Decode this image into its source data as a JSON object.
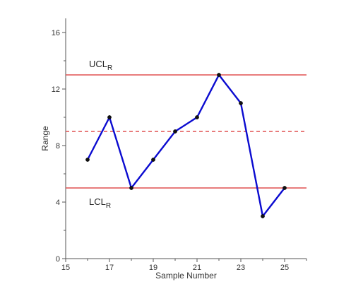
{
  "chart_data": {
    "type": "line",
    "xlabel": "Sample Number",
    "ylabel": "Range",
    "xlim": [
      15,
      26
    ],
    "ylim": [
      0,
      17
    ],
    "x_ticks": [
      15,
      17,
      19,
      21,
      23,
      25
    ],
    "y_ticks": [
      0,
      4,
      8,
      12,
      16
    ],
    "series": [
      {
        "x": [
          16,
          17,
          18,
          19,
          20,
          21,
          22,
          23,
          24,
          25
        ],
        "values": [
          7,
          10,
          5,
          7,
          9,
          10,
          13,
          11,
          3,
          5
        ],
        "color": "#0b0bd0"
      }
    ],
    "control_limits": {
      "ucl": {
        "value": 13,
        "label": "UCL",
        "subscript": "R",
        "color": "#e05050",
        "style": "solid"
      },
      "center": {
        "value": 9,
        "color": "#e05050",
        "style": "dashed"
      },
      "lcl": {
        "value": 5,
        "label": "LCL",
        "subscript": "R",
        "color": "#e05050",
        "style": "solid"
      }
    },
    "grid": false
  }
}
